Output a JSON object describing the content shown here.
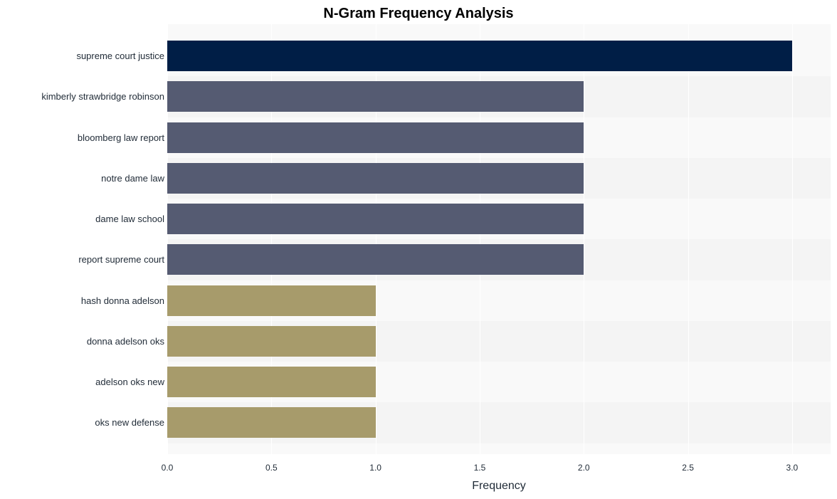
{
  "chart": {
    "type": "bar-horizontal",
    "title": "N-Gram Frequency Analysis",
    "title_fontsize": 20,
    "title_fontweight": "bold",
    "xlabel": "Frequency",
    "xlabel_fontsize": 16,
    "ylabel_fontsize": 13,
    "tick_fontsize": 12,
    "background_color": "#ffffff",
    "plot_background_color": "#f9f9f9",
    "row_alt_color": "#f4f4f4",
    "grid_color": "#ffffff",
    "text_color": "#1f2a36",
    "xlim": [
      0.0,
      3.185
    ],
    "xticks": [
      0.0,
      0.5,
      1.0,
      1.5,
      2.0,
      2.5,
      3.0
    ],
    "xtick_labels": [
      "0.0",
      "0.5",
      "1.0",
      "1.5",
      "2.0",
      "2.5",
      "3.0"
    ],
    "bar_width_ratio": 0.75,
    "categories": [
      "supreme court justice",
      "kimberly strawbridge robinson",
      "bloomberg law report",
      "notre dame law",
      "dame law school",
      "report supreme court",
      "hash donna adelson",
      "donna adelson oks",
      "adelson oks new",
      "oks new defense"
    ],
    "values": [
      3.0,
      2.0,
      2.0,
      2.0,
      2.0,
      2.0,
      1.0,
      1.0,
      1.0,
      1.0
    ],
    "bar_colors": [
      "#001e46",
      "#555b72",
      "#555b72",
      "#555b72",
      "#555b72",
      "#555b72",
      "#a79b6b",
      "#a79b6b",
      "#a79b6b",
      "#a79b6b"
    ]
  }
}
